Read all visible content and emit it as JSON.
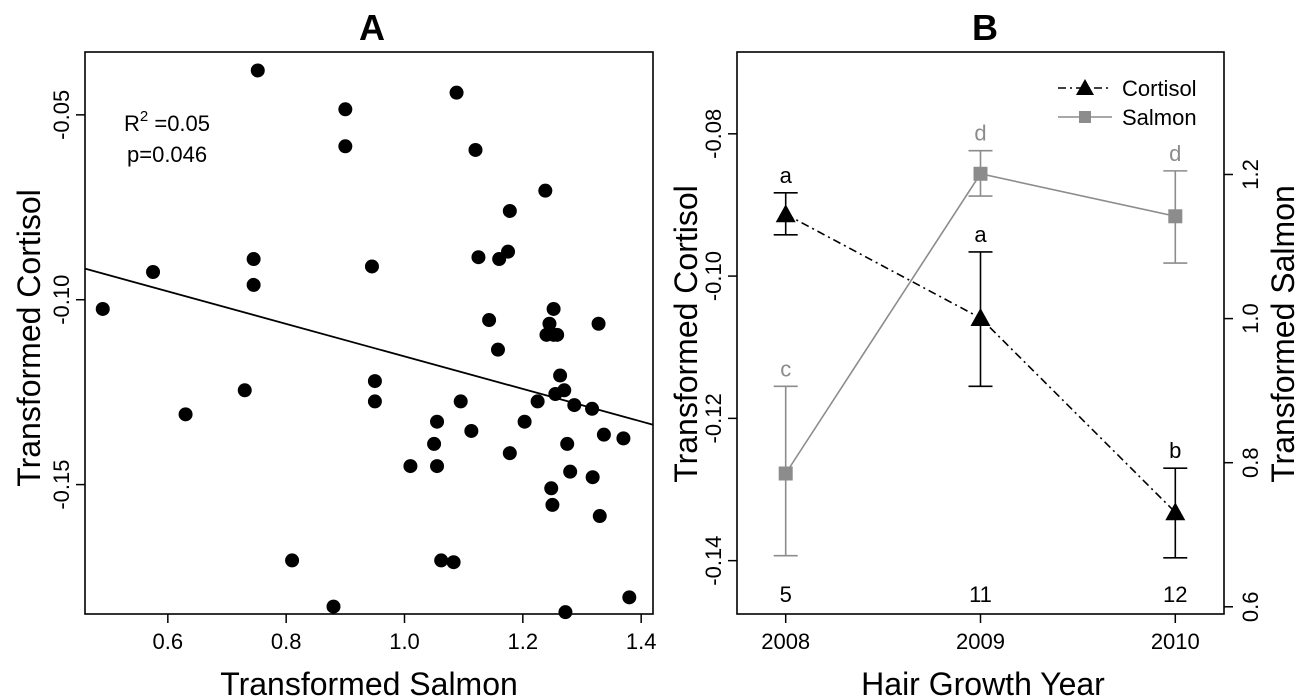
{
  "chart_data": [
    {
      "panel": "A",
      "type": "scatter",
      "title": "A",
      "xlabel": "Transformed Salmon",
      "ylabel": "Transformed Cortisol",
      "xlim": [
        0.46,
        1.42
      ],
      "ylim": [
        -0.185,
        -0.033
      ],
      "xticks": [
        0.6,
        0.8,
        1.0,
        1.2,
        1.4
      ],
      "xtick_labels": [
        "0.6",
        "0.8",
        "1.0",
        "1.2",
        "1.4"
      ],
      "yticks": [
        -0.05,
        -0.1,
        -0.15
      ],
      "ytick_labels": [
        "-0.05",
        "-0.10",
        "-0.15"
      ],
      "annotation": {
        "r2_label": "R",
        "r2_sup": "2",
        "r2_value": " =0.05",
        "p_text": "p=0.046"
      },
      "fit_line": {
        "x": [
          0.46,
          1.42
        ],
        "y": [
          -0.0916,
          -0.1338
        ]
      },
      "points": [
        {
          "x": 0.49,
          "y": -0.1025
        },
        {
          "x": 0.575,
          "y": -0.0925
        },
        {
          "x": 0.63,
          "y": -0.131
        },
        {
          "x": 0.73,
          "y": -0.1245
        },
        {
          "x": 0.745,
          "y": -0.089
        },
        {
          "x": 0.745,
          "y": -0.096
        },
        {
          "x": 0.752,
          "y": -0.038
        },
        {
          "x": 0.81,
          "y": -0.1705
        },
        {
          "x": 0.88,
          "y": -0.183
        },
        {
          "x": 0.9,
          "y": -0.0485
        },
        {
          "x": 0.9,
          "y": -0.0585
        },
        {
          "x": 0.945,
          "y": -0.091
        },
        {
          "x": 0.95,
          "y": -0.122
        },
        {
          "x": 0.95,
          "y": -0.1275
        },
        {
          "x": 1.01,
          "y": -0.145
        },
        {
          "x": 1.05,
          "y": -0.139
        },
        {
          "x": 1.055,
          "y": -0.133
        },
        {
          "x": 1.055,
          "y": -0.145
        },
        {
          "x": 1.062,
          "y": -0.1705
        },
        {
          "x": 1.083,
          "y": -0.171
        },
        {
          "x": 1.088,
          "y": -0.044
        },
        {
          "x": 1.095,
          "y": -0.1275
        },
        {
          "x": 1.113,
          "y": -0.1355
        },
        {
          "x": 1.12,
          "y": -0.0595
        },
        {
          "x": 1.125,
          "y": -0.0885
        },
        {
          "x": 1.143,
          "y": -0.1055
        },
        {
          "x": 1.158,
          "y": -0.1135
        },
        {
          "x": 1.16,
          "y": -0.089
        },
        {
          "x": 1.175,
          "y": -0.087
        },
        {
          "x": 1.178,
          "y": -0.076
        },
        {
          "x": 1.178,
          "y": -0.1415
        },
        {
          "x": 1.203,
          "y": -0.133
        },
        {
          "x": 1.225,
          "y": -0.1275
        },
        {
          "x": 1.238,
          "y": -0.0705
        },
        {
          "x": 1.24,
          "y": -0.1095
        },
        {
          "x": 1.245,
          "y": -0.1065
        },
        {
          "x": 1.248,
          "y": -0.151
        },
        {
          "x": 1.25,
          "y": -0.1555
        },
        {
          "x": 1.252,
          "y": -0.1025
        },
        {
          "x": 1.252,
          "y": -0.1095
        },
        {
          "x": 1.255,
          "y": -0.1255
        },
        {
          "x": 1.258,
          "y": -0.1095
        },
        {
          "x": 1.263,
          "y": -0.1205
        },
        {
          "x": 1.27,
          "y": -0.1245
        },
        {
          "x": 1.272,
          "y": -0.1845
        },
        {
          "x": 1.275,
          "y": -0.139
        },
        {
          "x": 1.28,
          "y": -0.1465
        },
        {
          "x": 1.287,
          "y": -0.1285
        },
        {
          "x": 1.317,
          "y": -0.1295
        },
        {
          "x": 1.318,
          "y": -0.148
        },
        {
          "x": 1.328,
          "y": -0.1065
        },
        {
          "x": 1.33,
          "y": -0.1585
        },
        {
          "x": 1.337,
          "y": -0.1365
        },
        {
          "x": 1.37,
          "y": -0.1375
        },
        {
          "x": 1.38,
          "y": -0.1805
        }
      ]
    },
    {
      "panel": "B",
      "type": "line",
      "title": "B",
      "xlabel": "Hair Growth Year",
      "ylabel_left": "Transformed Cortisol",
      "ylabel_right": "Transformed Salmon",
      "categories": [
        "2008",
        "2009",
        "2010"
      ],
      "x": [
        2008,
        2009,
        2010
      ],
      "xlim": [
        2007.75,
        2010.25
      ],
      "ylim_left": [
        -0.1475,
        -0.0685
      ],
      "ylim_right": [
        0.59,
        1.37
      ],
      "yticks_left": [
        -0.08,
        -0.1,
        -0.12,
        -0.14
      ],
      "ytick_labels_left": [
        "-0.08",
        "-0.10",
        "-0.12",
        "-0.14"
      ],
      "yticks_right": [
        0.6,
        0.8,
        1.0,
        1.2
      ],
      "ytick_labels_right": [
        "0.6",
        "0.8",
        "1.0",
        "1.2"
      ],
      "sample_sizes": [
        "5",
        "11",
        "12"
      ],
      "legend": {
        "position": "top-right",
        "entries": [
          "Cortisol",
          "Salmon"
        ]
      },
      "colors": {
        "cortisol": "#000000",
        "salmon": "#8c8c8c"
      },
      "series": [
        {
          "name": "Cortisol",
          "axis": "left",
          "marker": "triangle",
          "line_style": "dashdot",
          "values": [
            -0.0913,
            -0.1059,
            -0.1332
          ],
          "err_low": [
            -0.0942,
            -0.1155,
            -0.1396
          ],
          "err_high": [
            -0.0883,
            -0.0966,
            -0.127
          ],
          "letters": [
            "a",
            "a",
            "b"
          ]
        },
        {
          "name": "Salmon",
          "axis": "right",
          "marker": "square",
          "line_style": "solid",
          "values": [
            0.785,
            1.201,
            1.142
          ],
          "err_low": [
            0.671,
            1.17,
            1.077
          ],
          "err_high": [
            0.906,
            1.233,
            1.205
          ],
          "letters": [
            "c",
            "d",
            "d"
          ]
        }
      ]
    }
  ]
}
